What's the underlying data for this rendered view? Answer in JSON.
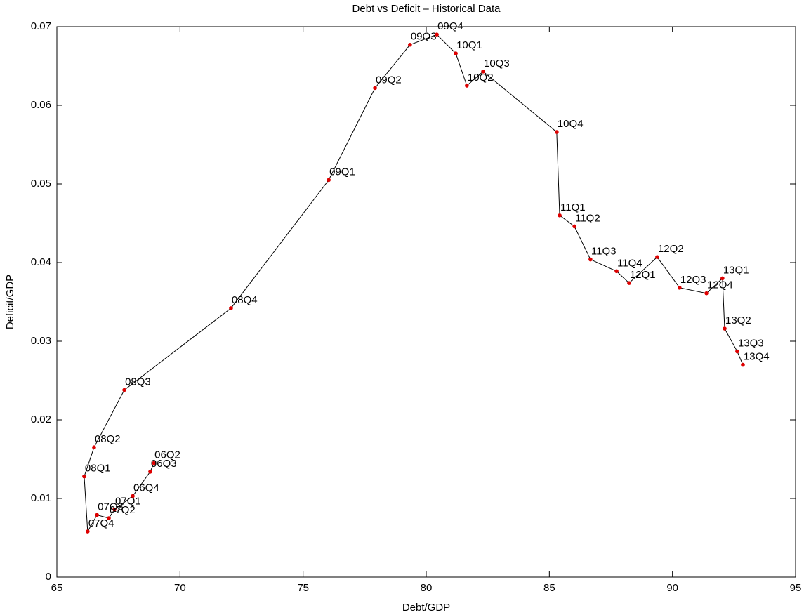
{
  "chart_data": {
    "type": "line",
    "title": "Debt vs Deficit – Historical Data",
    "x_label": "Debt/GDP",
    "y_label": "Deficit/GDP",
    "x": [
      68.94,
      68.79,
      68.08,
      67.34,
      67.11,
      66.63,
      66.25,
      66.11,
      66.51,
      67.74,
      72.07,
      76.04,
      77.92,
      79.34,
      80.43,
      81.2,
      81.65,
      82.31,
      85.3,
      85.42,
      86.02,
      86.67,
      87.73,
      88.24,
      89.38,
      90.29,
      91.38,
      92.03,
      92.12,
      92.63,
      92.86
    ],
    "point_labels": [
      "06Q2",
      "06Q3",
      "06Q4",
      "07Q1",
      "07Q2",
      "07Q3",
      "07Q4",
      "08Q1",
      "08Q2",
      "08Q3",
      "08Q4",
      "09Q1",
      "09Q2",
      "09Q3",
      "09Q4",
      "10Q1",
      "10Q2",
      "10Q3",
      "10Q4",
      "11Q1",
      "11Q2",
      "11Q3",
      "11Q4",
      "12Q1",
      "12Q2",
      "12Q3",
      "12Q4",
      "13Q1",
      "13Q2",
      "13Q3",
      "13Q4"
    ],
    "series": [
      {
        "color": "#000000",
        "marker_color": "#dd0000",
        "values": [
          0.0145,
          0.0134,
          0.0103,
          0.0086,
          0.0075,
          0.0079,
          0.0058,
          0.0128,
          0.0165,
          0.0238,
          0.0342,
          0.0505,
          0.0622,
          0.0677,
          0.069,
          0.0666,
          0.0625,
          0.0643,
          0.0566,
          0.046,
          0.0446,
          0.0404,
          0.0389,
          0.0374,
          0.0407,
          0.0368,
          0.0361,
          0.038,
          0.0316,
          0.0287,
          0.027
        ]
      }
    ],
    "xlim": [
      65,
      95
    ],
    "xticks": [
      65,
      70,
      75,
      80,
      85,
      90,
      95
    ],
    "ylim": [
      0,
      0.07
    ],
    "yticks": [
      0,
      0.01,
      0.02,
      0.03,
      0.04,
      0.05,
      0.06,
      0.07
    ]
  }
}
